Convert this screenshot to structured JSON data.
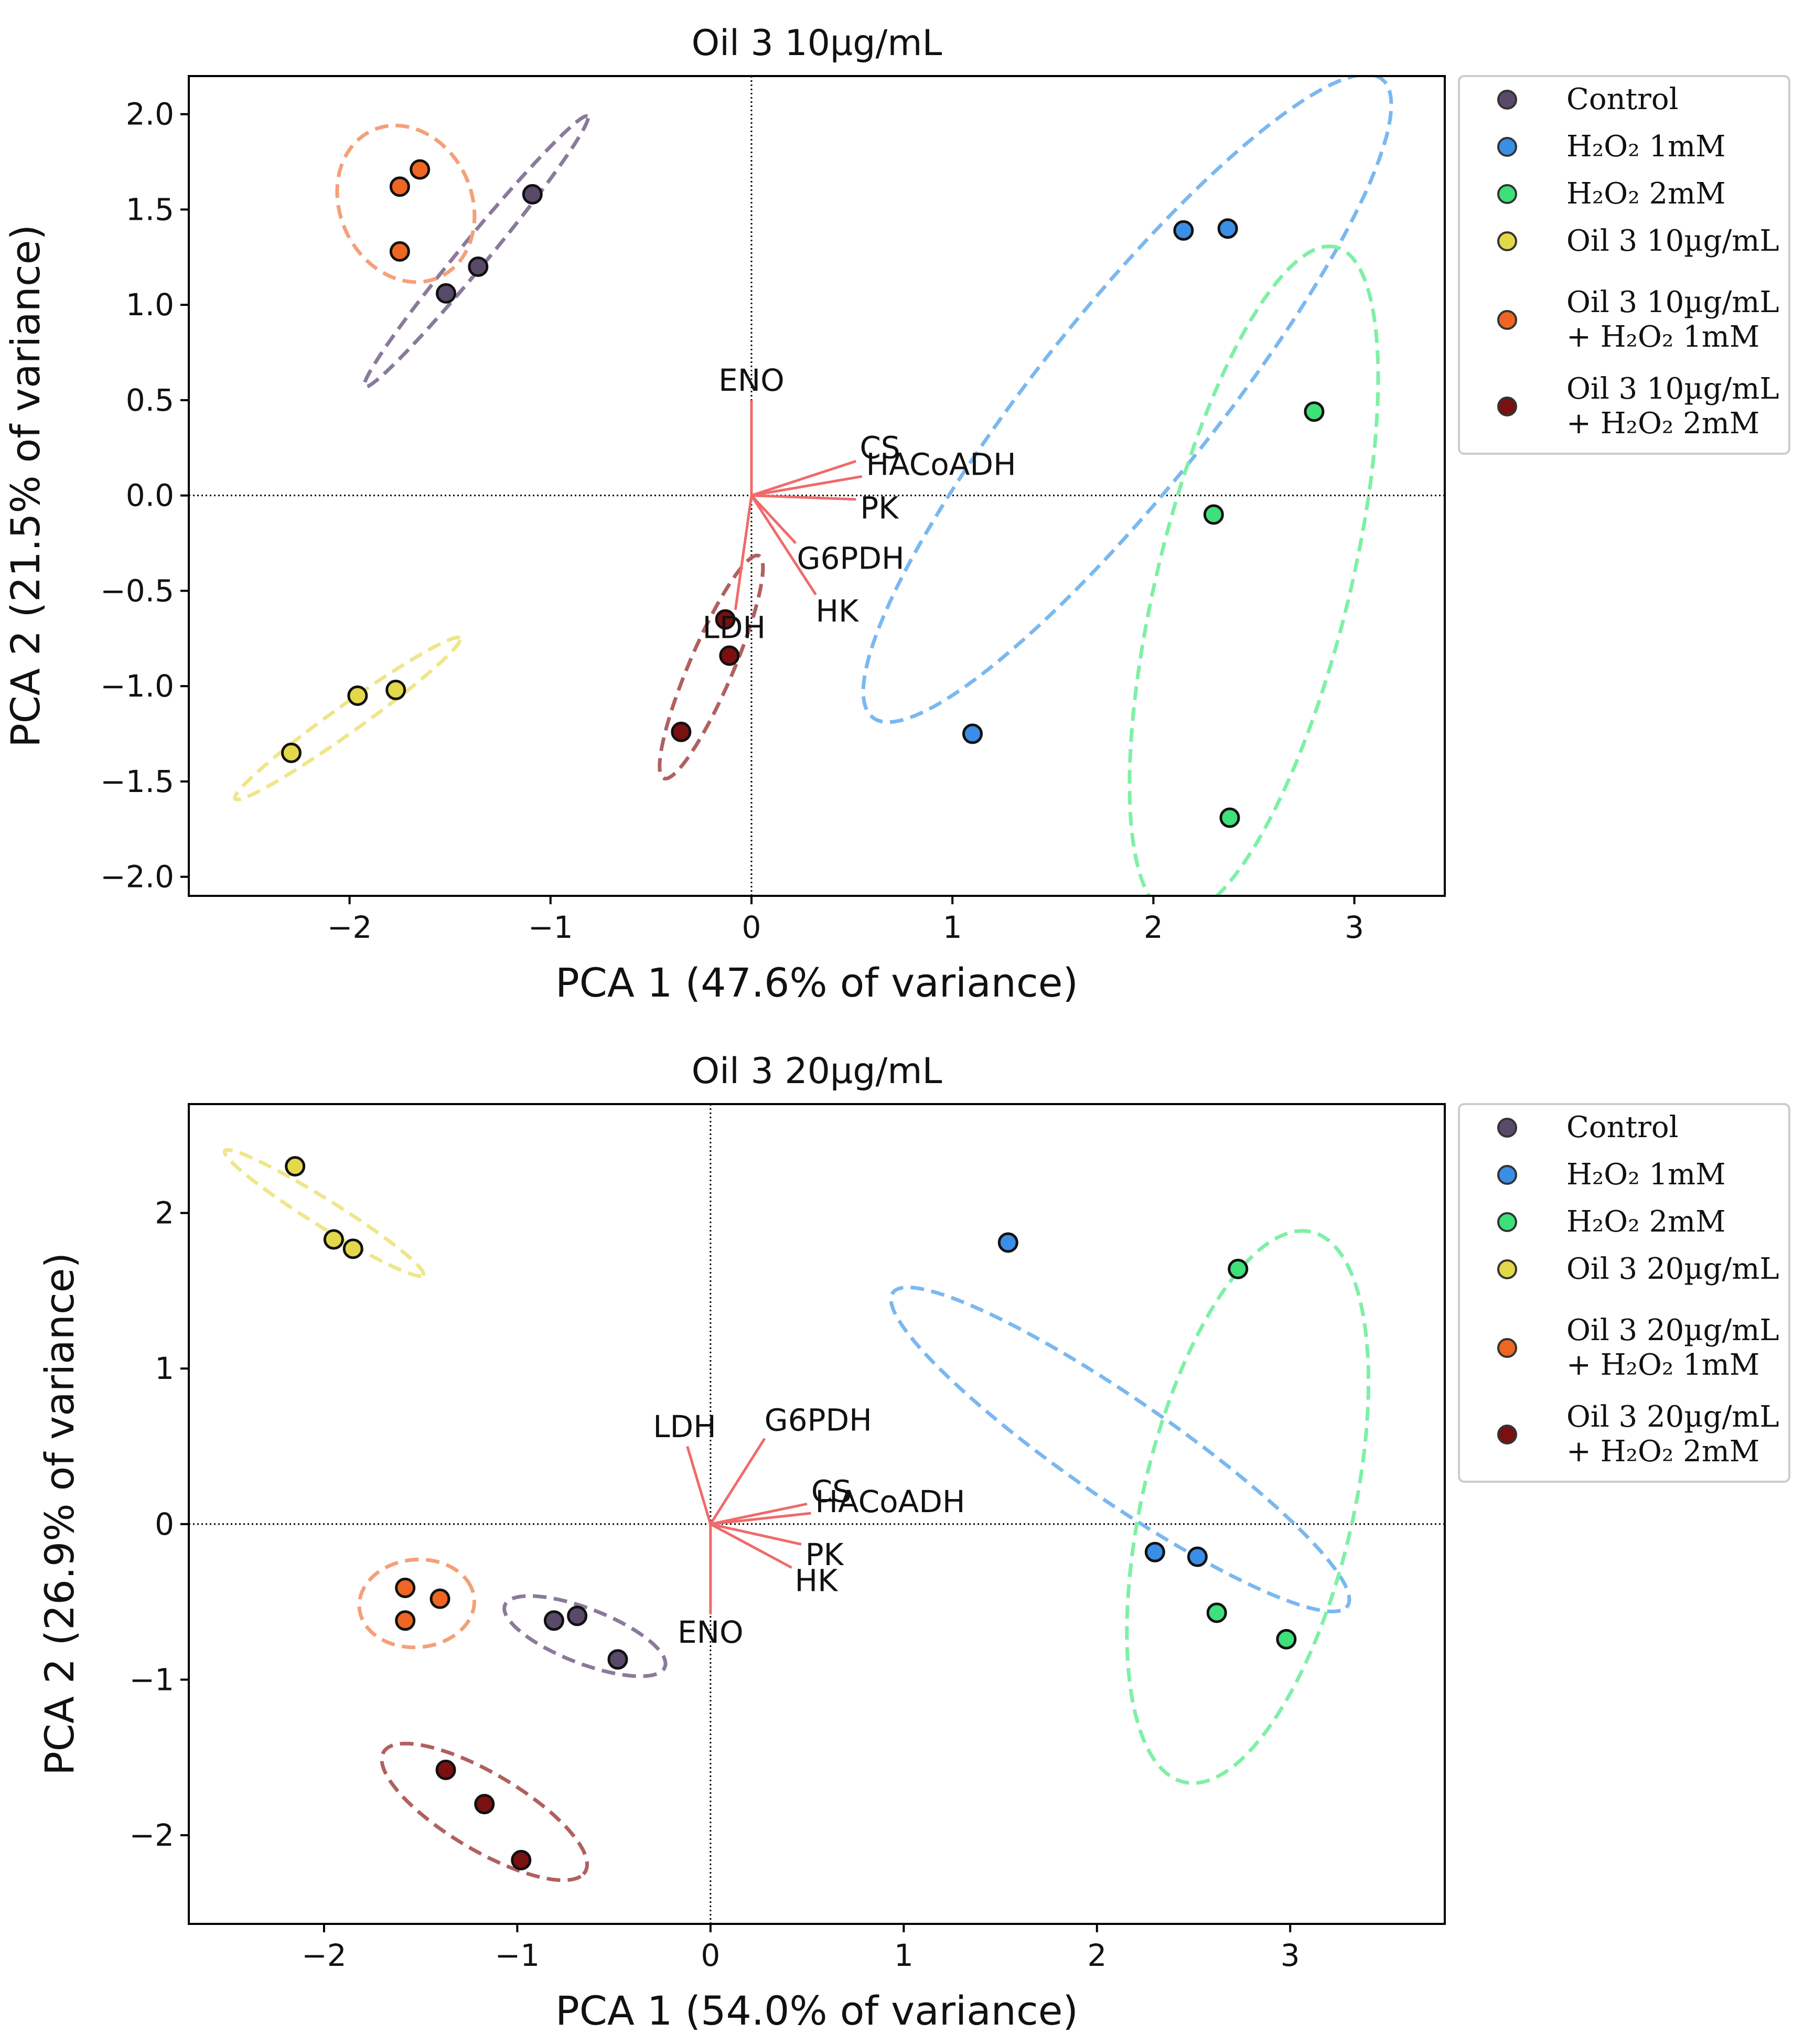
{
  "chart_data": [
    {
      "type": "scatter",
      "title": "Oil 3 10µg/mL",
      "xlabel": "PCA 1 (47.6% of variance)",
      "ylabel": "PCA 2 (21.5% of variance)",
      "xlim": [
        -2.8,
        3.45
      ],
      "ylim": [
        -2.1,
        2.2
      ],
      "xticks": [
        -2,
        -1,
        0,
        1,
        2,
        3
      ],
      "xtick_labels": [
        "−2",
        "−1",
        "0",
        "1",
        "2",
        "3"
      ],
      "yticks": [
        2.0,
        1.5,
        1.0,
        0.5,
        0.0,
        -0.5,
        -1.0,
        -1.5,
        -2.0
      ],
      "ytick_labels": [
        "2.0",
        "1.5",
        "1.0",
        "0.5",
        "0.0",
        "−0.5",
        "−1.0",
        "−1.5",
        "−2.0"
      ],
      "reference_lines": {
        "x": 0,
        "y": 0,
        "style": "dotted"
      },
      "series": [
        {
          "name": "Control",
          "color": "#5a4a6a",
          "ellipse_color": "#8a7a9a",
          "points": [
            [
              -1.52,
              1.06
            ],
            [
              -1.36,
              1.2
            ],
            [
              -1.09,
              1.58
            ]
          ],
          "ellipse": {
            "cx": -1.37,
            "cy": 1.28,
            "rx": 0.9,
            "ry": 0.07,
            "angle": 52
          }
        },
        {
          "name": "H₂O₂ 1mM",
          "color": "#3a8ee6",
          "ellipse_color": "#7ab8f0",
          "points": [
            [
              2.15,
              1.39
            ],
            [
              2.37,
              1.4
            ],
            [
              1.1,
              -1.25
            ]
          ],
          "ellipse": {
            "cx": 1.87,
            "cy": 0.51,
            "rx": 2.1,
            "ry": 0.45,
            "angle": 53
          }
        },
        {
          "name": "H₂O₂ 2mM",
          "color": "#3ee07a",
          "ellipse_color": "#7ef0a6",
          "points": [
            [
              2.8,
              0.44
            ],
            [
              2.3,
              -0.1
            ],
            [
              2.38,
              -1.69
            ]
          ],
          "ellipse": {
            "cx": 2.5,
            "cy": -0.45,
            "rx": 1.8,
            "ry": 0.48,
            "angle": 77
          }
        },
        {
          "name": "Oil 3 10µg/mL",
          "color": "#e2d84a",
          "ellipse_color": "#eee68a",
          "points": [
            [
              -2.29,
              -1.35
            ],
            [
              -1.96,
              -1.05
            ],
            [
              -1.77,
              -1.02
            ]
          ],
          "ellipse": {
            "cx": -2.01,
            "cy": -1.17,
            "rx": 0.7,
            "ry": 0.07,
            "angle": 37
          }
        },
        {
          "name": "Oil 3 10µg/mL + H₂O₂ 1mM",
          "color": "#ee6622",
          "ellipse_color": "#f4a078",
          "points": [
            [
              -1.75,
              1.62
            ],
            [
              -1.65,
              1.71
            ],
            [
              -1.75,
              1.28
            ]
          ],
          "ellipse": {
            "cx": -1.72,
            "cy": 1.53,
            "rx": 0.33,
            "ry": 0.42,
            "angle": 20
          }
        },
        {
          "name": "Oil 3 10µg/mL + H₂O₂ 2mM",
          "color": "#7a1010",
          "ellipse_color": "#b06060",
          "points": [
            [
              -0.13,
              -0.65
            ],
            [
              -0.11,
              -0.84
            ],
            [
              -0.35,
              -1.24
            ]
          ],
          "ellipse": {
            "cx": -0.2,
            "cy": -0.9,
            "rx": 0.63,
            "ry": 0.11,
            "angle": 68
          }
        }
      ],
      "loadings": [
        {
          "label": "ENO",
          "x": 0.0,
          "y": 0.5
        },
        {
          "label": "CS",
          "x": 0.52,
          "y": 0.18
        },
        {
          "label": "HACoADH",
          "x": 0.55,
          "y": 0.1
        },
        {
          "label": "PK",
          "x": 0.52,
          "y": -0.02
        },
        {
          "label": "G6PDH",
          "x": 0.22,
          "y": -0.25
        },
        {
          "label": "HK",
          "x": 0.32,
          "y": -0.52
        },
        {
          "label": "LDH",
          "x": -0.08,
          "y": -0.6
        }
      ],
      "legend": {
        "position": "outside-right-top",
        "labels": [
          "Control",
          "H₂O₂ 1mM",
          "H₂O₂ 2mM",
          "Oil 3 10µg/mL",
          "Oil 3 10µg/mL",
          "+ H₂O₂ 1mM",
          "Oil 3 10µg/mL",
          "+ H₂O₂ 2mM"
        ]
      }
    },
    {
      "type": "scatter",
      "title": "Oil 3 20µg/mL",
      "xlabel": "PCA 1 (54.0% of variance)",
      "ylabel": "PCA 2 (26.9% of variance)",
      "xlim": [
        -2.7,
        3.8
      ],
      "ylim": [
        -2.57,
        2.7
      ],
      "xticks": [
        -2,
        -1,
        0,
        1,
        2,
        3
      ],
      "xtick_labels": [
        "−2",
        "−1",
        "0",
        "1",
        "2",
        "3"
      ],
      "yticks": [
        2,
        1,
        0,
        -1,
        -2
      ],
      "ytick_labels": [
        "2",
        "1",
        "0",
        "−1",
        "−2"
      ],
      "reference_lines": {
        "x": 0,
        "y": 0,
        "style": "dotted"
      },
      "series": [
        {
          "name": "Control",
          "color": "#5a4a6a",
          "ellipse_color": "#8a7a9a",
          "points": [
            [
              -0.81,
              -0.62
            ],
            [
              -0.69,
              -0.59
            ],
            [
              -0.48,
              -0.87
            ]
          ],
          "ellipse": {
            "cx": -0.65,
            "cy": -0.72,
            "rx": 0.46,
            "ry": 0.17,
            "angle": -27
          }
        },
        {
          "name": "H₂O₂ 1mM",
          "color": "#3a8ee6",
          "ellipse_color": "#7ab8f0",
          "points": [
            [
              1.54,
              1.81
            ],
            [
              2.3,
              -0.18
            ],
            [
              2.52,
              -0.21
            ]
          ],
          "ellipse": {
            "cx": 2.12,
            "cy": 0.48,
            "rx": 1.55,
            "ry": 0.3,
            "angle": -41
          }
        },
        {
          "name": "H₂O₂ 2mM",
          "color": "#3ee07a",
          "ellipse_color": "#7ef0a6",
          "points": [
            [
              2.73,
              1.64
            ],
            [
              2.62,
              -0.57
            ],
            [
              2.98,
              -0.74
            ]
          ],
          "ellipse": {
            "cx": 2.78,
            "cy": 0.11,
            "rx": 1.8,
            "ry": 0.55,
            "angle": 80
          }
        },
        {
          "name": "Oil 3 20µg/mL",
          "color": "#e2d84a",
          "ellipse_color": "#eee68a",
          "points": [
            [
              -2.15,
              2.3
            ],
            [
              -1.95,
              1.83
            ],
            [
              -1.85,
              1.77
            ]
          ],
          "ellipse": {
            "cx": -2.0,
            "cy": 2.0,
            "rx": 0.65,
            "ry": 0.08,
            "angle": -38
          }
        },
        {
          "name": "Oil 3 20µg/mL + H₂O₂ 1mM",
          "color": "#ee6622",
          "ellipse_color": "#f4a078",
          "points": [
            [
              -1.58,
              -0.41
            ],
            [
              -1.4,
              -0.48
            ],
            [
              -1.58,
              -0.62
            ]
          ],
          "ellipse": {
            "cx": -1.52,
            "cy": -0.51,
            "rx": 0.3,
            "ry": 0.28,
            "angle": 20
          }
        },
        {
          "name": "Oil 3 20µg/mL + H₂O₂ 2mM",
          "color": "#7a1010",
          "ellipse_color": "#b06060",
          "points": [
            [
              -1.37,
              -1.58
            ],
            [
              -1.17,
              -1.8
            ],
            [
              -0.98,
              -2.16
            ]
          ],
          "ellipse": {
            "cx": -1.17,
            "cy": -1.85,
            "rx": 0.65,
            "ry": 0.23,
            "angle": -38
          }
        }
      ],
      "loadings": [
        {
          "label": "LDH",
          "x": -0.12,
          "y": 0.5
        },
        {
          "label": "G6PDH",
          "x": 0.28,
          "y": 0.55
        },
        {
          "label": "CS",
          "x": 0.5,
          "y": 0.13
        },
        {
          "label": "HACoADH",
          "x": 0.52,
          "y": 0.07
        },
        {
          "label": "PK",
          "x": 0.47,
          "y": -0.13
        },
        {
          "label": "HK",
          "x": 0.42,
          "y": -0.28
        },
        {
          "label": "ENO",
          "x": 0.0,
          "y": -0.58
        }
      ],
      "legend": {
        "position": "outside-right-top",
        "labels": [
          "Control",
          "H₂O₂ 1mM",
          "H₂O₂ 2mM",
          "Oil 3 20µg/mL",
          "Oil 3 20µg/mL",
          "+ H₂O₂ 1mM",
          "Oil 3 20µg/mL",
          "+ H₂O₂ 2mM"
        ]
      }
    }
  ]
}
